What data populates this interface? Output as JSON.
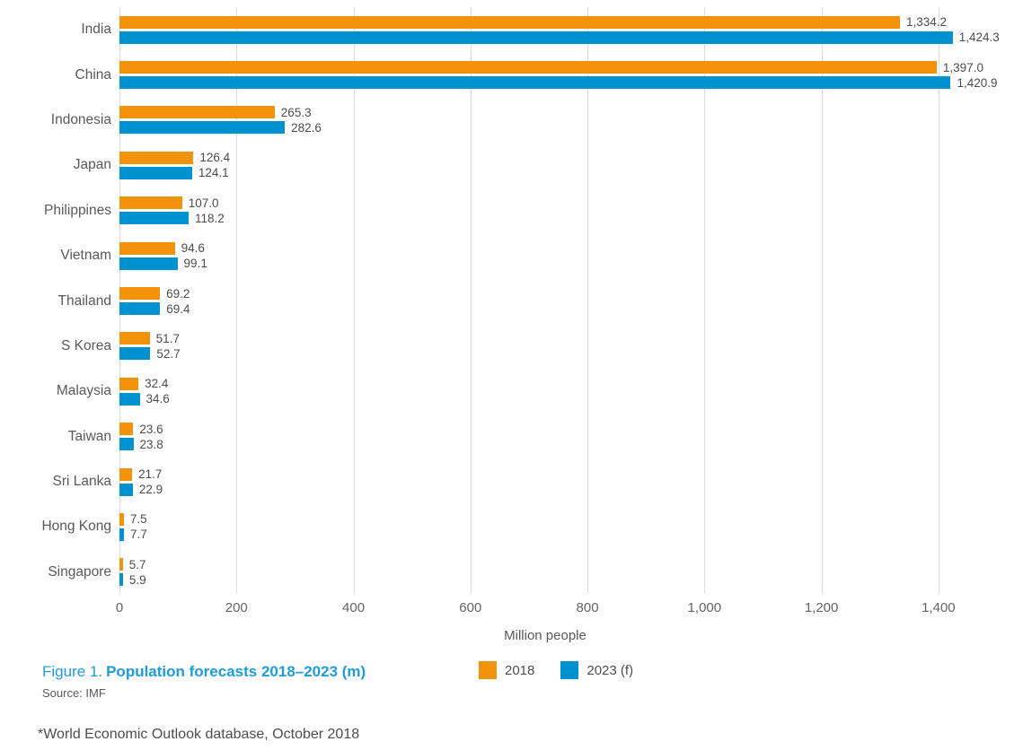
{
  "chart_data": {
    "type": "bar",
    "orientation": "horizontal",
    "title": "Population forecasts 2018–2023 (m)",
    "xlabel": "Million people",
    "xlim": [
      0,
      1500
    ],
    "xticks": [
      0,
      200,
      400,
      600,
      800,
      1000,
      1200,
      1400
    ],
    "xtick_labels": [
      "0",
      "200",
      "400",
      "600",
      "800",
      "1,000",
      "1,200",
      "1,400"
    ],
    "grid": "vertical",
    "value_labels": true,
    "legend_position": "bottom-center",
    "categories": [
      "India",
      "China",
      "Indonesia",
      "Japan",
      "Philippines",
      "Vietnam",
      "Thailand",
      "S Korea",
      "Malaysia",
      "Taiwan",
      "Sri Lanka",
      "Hong Kong",
      "Singapore"
    ],
    "series": [
      {
        "name": "2018",
        "color": "#F0930A",
        "values": [
          1334.2,
          1397.0,
          265.3,
          126.4,
          107.0,
          94.6,
          69.2,
          51.7,
          32.4,
          23.6,
          21.7,
          7.5,
          5.7
        ]
      },
      {
        "name": "2023 (f)",
        "color": "#0091D1",
        "values": [
          1424.3,
          1420.9,
          282.6,
          124.1,
          118.2,
          99.1,
          69.4,
          52.7,
          34.6,
          23.8,
          22.9,
          7.7,
          5.9
        ]
      }
    ]
  },
  "caption": {
    "figure_label": "Figure 1.",
    "title": "Population forecasts 2018–2023 (m)",
    "source": "Source: IMF"
  },
  "footnote": "*World Economic Outlook database, October 2018",
  "colors": {
    "bar_2018": "#F0930A",
    "bar_2023": "#0091D1",
    "caption_blue": "#1E9CD9",
    "gridline": "#DBDBDB",
    "category_label": "#58595B",
    "value_label": "#4D4D4D"
  }
}
